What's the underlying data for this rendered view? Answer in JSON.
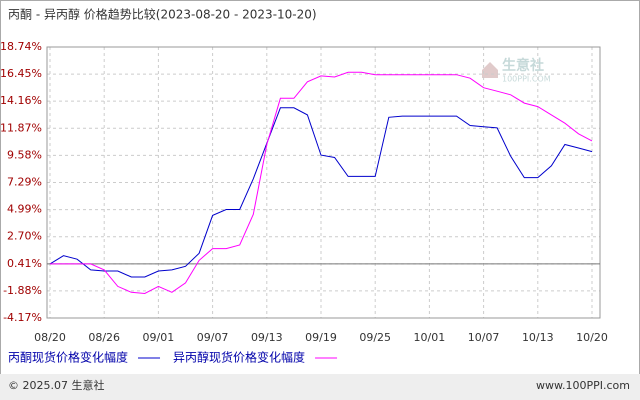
{
  "chart_data": {
    "type": "line",
    "title": "丙酮 - 异丙醇 价格趋势比较(2023-08-20 - 2023-10-20)",
    "categories": [
      "08/20",
      null,
      null,
      null,
      "08/26",
      null,
      null,
      null,
      "09/01",
      null,
      null,
      null,
      "09/07",
      null,
      null,
      null,
      "09/13",
      null,
      null,
      null,
      "09/19",
      null,
      null,
      null,
      "09/25",
      null,
      null,
      null,
      "10/01",
      null,
      null,
      null,
      "10/07",
      null,
      null,
      null,
      "10/13",
      null,
      null,
      null,
      "10/20"
    ],
    "series": [
      {
        "name": "丙酮现货价格变化幅度",
        "color": "#0000cc",
        "values": [
          0.4,
          1.1,
          0.8,
          -0.1,
          -0.2,
          -0.2,
          -0.7,
          -0.7,
          -0.2,
          -0.1,
          0.2,
          1.3,
          4.5,
          5.0,
          5.0,
          7.6,
          10.6,
          13.6,
          13.6,
          13.0,
          9.6,
          9.4,
          7.8,
          7.8,
          7.8,
          12.8,
          12.9,
          12.9,
          12.9,
          12.9,
          12.9,
          12.1,
          12.0,
          11.9,
          9.5,
          7.7,
          7.7,
          8.7,
          10.5,
          10.2,
          9.9
        ]
      },
      {
        "name": "异丙醇现货价格变化幅度",
        "color": "#ff00ff",
        "values": [
          0.4,
          0.4,
          0.4,
          0.4,
          -0.1,
          -1.5,
          -2.0,
          -2.1,
          -1.5,
          -2.0,
          -1.2,
          0.7,
          1.7,
          1.7,
          2.0,
          4.6,
          10.5,
          14.4,
          14.4,
          15.8,
          16.3,
          16.2,
          16.6,
          16.6,
          16.4,
          16.4,
          16.4,
          16.4,
          16.4,
          16.4,
          16.4,
          16.1,
          15.3,
          15.0,
          14.7,
          14.0,
          13.7,
          13.0,
          12.3,
          11.4,
          10.8
        ]
      }
    ],
    "ylim": [
      -4.17,
      18.74
    ],
    "yticks": [
      {
        "value": -4.17,
        "label": "-4.17%"
      },
      {
        "value": -1.88,
        "label": "-1.88%"
      },
      {
        "value": 0.41,
        "label": "0.41%"
      },
      {
        "value": 2.7,
        "label": "2.70%"
      },
      {
        "value": 4.99,
        "label": "4.99%"
      },
      {
        "value": 7.29,
        "label": "7.29%"
      },
      {
        "value": 9.58,
        "label": "9.58%"
      },
      {
        "value": 11.87,
        "label": "11.87%"
      },
      {
        "value": 14.16,
        "label": "14.16%"
      },
      {
        "value": 16.45,
        "label": "16.45%"
      },
      {
        "value": 18.74,
        "label": "18.74%"
      }
    ],
    "baseline": 0.41,
    "grid": true,
    "legend": "bottom"
  },
  "watermark": {
    "name": "生意社",
    "site": "100PPI.COM"
  },
  "footer": {
    "copyright": "© 2025.07 生意社",
    "site": "www.100PPI.com"
  }
}
